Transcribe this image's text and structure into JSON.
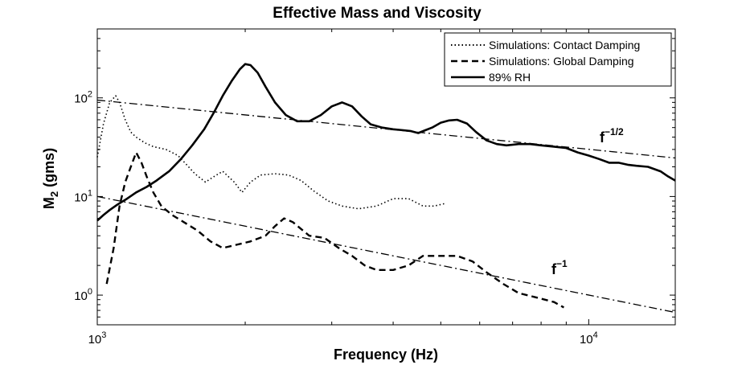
{
  "chart_data": {
    "type": "line",
    "title": "Effective Mass and Viscosity",
    "xlabel": "Frequency (Hz)",
    "ylabel_base": "M",
    "ylabel_sub": "2",
    "ylabel_rest": " (gms)",
    "xscale": "log",
    "yscale": "log",
    "xlim": [
      1000,
      15000
    ],
    "ylim": [
      0.5,
      500
    ],
    "grid": false,
    "legend_position": "top-right",
    "x_ticks": [
      {
        "value": 1000,
        "base": "10",
        "exp": "3"
      },
      {
        "value": 10000,
        "base": "10",
        "exp": "4"
      }
    ],
    "y_ticks": [
      {
        "value": 1,
        "base": "10",
        "exp": "0"
      },
      {
        "value": 10,
        "base": "10",
        "exp": "1"
      },
      {
        "value": 100,
        "base": "10",
        "exp": "2"
      }
    ],
    "series": [
      {
        "name": "Simulations: Contact Damping",
        "style": "dotted",
        "color": "#000000",
        "x": [
          1000,
          1030,
          1060,
          1090,
          1110,
          1140,
          1170,
          1200,
          1250,
          1300,
          1380,
          1460,
          1520,
          1580,
          1660,
          1730,
          1800,
          1900,
          1970,
          2050,
          2150,
          2300,
          2450,
          2600,
          2750,
          2950,
          3150,
          3400,
          3700,
          4000,
          4300,
          4600,
          4850,
          5100
        ],
        "y": [
          25,
          55,
          90,
          105,
          90,
          60,
          45,
          40,
          35,
          32,
          30,
          26,
          21,
          17,
          14,
          16,
          18,
          14,
          11,
          14,
          16.5,
          17,
          16.5,
          14.5,
          11.5,
          9,
          8,
          7.5,
          8,
          9.5,
          9.5,
          8,
          8,
          8.5
        ]
      },
      {
        "name": "Simulations: Global Damping",
        "style": "dashed",
        "color": "#000000",
        "x": [
          1045,
          1080,
          1110,
          1140,
          1170,
          1200,
          1230,
          1260,
          1300,
          1350,
          1420,
          1500,
          1600,
          1700,
          1800,
          1900,
          2050,
          2200,
          2300,
          2400,
          2500,
          2700,
          2900,
          3100,
          3300,
          3500,
          3700,
          4000,
          4300,
          4600,
          5000,
          5400,
          5800,
          6200,
          6700,
          7200,
          7800,
          8500,
          8900
        ],
        "y": [
          1.3,
          3,
          8,
          14,
          20,
          28,
          22,
          16,
          11,
          8,
          6.5,
          5.5,
          4.5,
          3.5,
          3,
          3.2,
          3.5,
          4,
          5,
          6,
          5.5,
          4,
          3.8,
          3,
          2.5,
          2,
          1.8,
          1.8,
          2,
          2.5,
          2.5,
          2.5,
          2.2,
          1.7,
          1.3,
          1.05,
          0.95,
          0.85,
          0.75
        ]
      },
      {
        "name": "89% RH",
        "style": "solid",
        "color": "#000000",
        "x": [
          1000,
          1030,
          1060,
          1100,
          1150,
          1200,
          1260,
          1320,
          1400,
          1480,
          1560,
          1650,
          1730,
          1800,
          1880,
          1950,
          2000,
          2050,
          2120,
          2200,
          2300,
          2420,
          2550,
          2700,
          2850,
          3000,
          3150,
          3300,
          3450,
          3600,
          3800,
          4000,
          4200,
          4350,
          4500,
          4650,
          4800,
          5000,
          5200,
          5400,
          5650,
          5900,
          6200,
          6500,
          6800,
          7200,
          7600,
          8000,
          8500,
          9000,
          9500,
          10000,
          10500,
          11000,
          11500,
          12000,
          12500,
          13200,
          14000,
          14500,
          15000
        ],
        "y": [
          5.7,
          6.5,
          7.3,
          8.3,
          9.5,
          11,
          12.5,
          14.5,
          18,
          24,
          33,
          48,
          72,
          105,
          150,
          195,
          220,
          215,
          180,
          130,
          90,
          67,
          58,
          58,
          67,
          82,
          90,
          82,
          65,
          54,
          50,
          48,
          47,
          46,
          44,
          47,
          50,
          56,
          59,
          60,
          55,
          45,
          37,
          34,
          33,
          34,
          34,
          33,
          32,
          31,
          28,
          26,
          24,
          22,
          22,
          21,
          20.5,
          20,
          18,
          16,
          14.5
        ]
      }
    ],
    "reference_lines": [
      {
        "label_base": "f",
        "label_exp": "−1/2",
        "style": "dashdot",
        "x": [
          1000,
          15000
        ],
        "y": [
          95,
          24.6
        ]
      },
      {
        "label_base": "f",
        "label_exp": "−1",
        "style": "dashdot",
        "x": [
          1000,
          15000
        ],
        "y": [
          10,
          0.667
        ]
      }
    ]
  }
}
